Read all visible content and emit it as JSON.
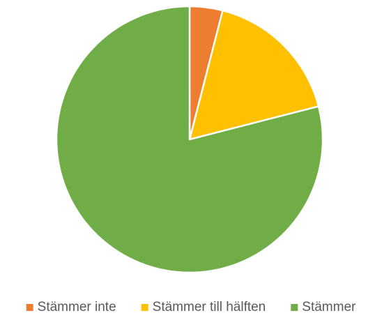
{
  "chart_data": {
    "type": "pie",
    "categories": [
      "Stämmer inte",
      "Stämmer till hälften",
      "Stämmer"
    ],
    "values": [
      4,
      17,
      79
    ],
    "colors": [
      "#ED7D31",
      "#FFC000",
      "#70AD47"
    ],
    "legend": "bottom"
  }
}
